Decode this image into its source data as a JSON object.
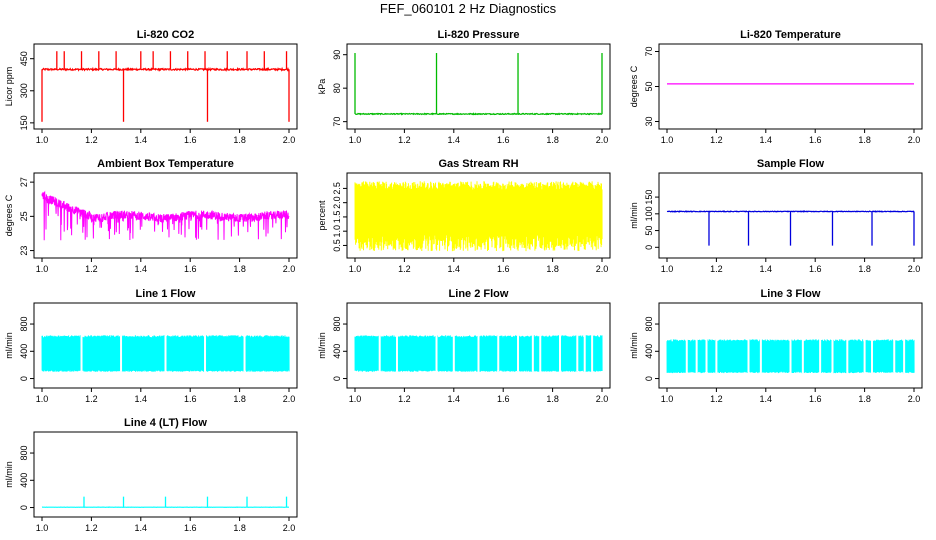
{
  "figure": {
    "title": "FEF_060101  2 Hz Diagnostics"
  },
  "chart_data": [
    {
      "type": "line",
      "title": "Li-820 CO2",
      "ylabel": "Licor ppm",
      "color": "#ff0000",
      "xlim": [
        1.0,
        2.0
      ],
      "ylim": [
        140,
        500
      ],
      "xticks": [
        "1.0",
        "1.2",
        "1.4",
        "1.6",
        "1.8",
        "2.0"
      ],
      "yticks": [
        "150",
        "300",
        "450"
      ],
      "ytick_values": [
        150,
        300,
        450
      ],
      "series": [
        {
          "base": 400,
          "noise": 8,
          "spikes_up": [
            1.06,
            1.09,
            1.16,
            1.23,
            1.3,
            1.4,
            1.45,
            1.52,
            1.59,
            1.66,
            1.75,
            1.83,
            1.9,
            1.99
          ],
          "spike_up_to": 485,
          "spikes_down": [
            1.0,
            1.33,
            1.67,
            2.0
          ],
          "spike_down_to": 155
        }
      ]
    },
    {
      "type": "line",
      "title": "Li-820 Pressure",
      "ylabel": "kPa",
      "color": "#00bb00",
      "xlim": [
        1.0,
        2.0
      ],
      "ylim": [
        69,
        92
      ],
      "xticks": [
        "1.0",
        "1.2",
        "1.4",
        "1.6",
        "1.8",
        "2.0"
      ],
      "yticks": [
        "70",
        "80",
        "90"
      ],
      "ytick_values": [
        70,
        80,
        90
      ],
      "series": [
        {
          "base": 72.3,
          "noise": 0.3,
          "spikes_up": [
            1.0,
            1.33,
            1.66,
            2.0
          ],
          "spike_up_to": 90.5
        }
      ]
    },
    {
      "type": "line",
      "title": "Li-820 Temperature",
      "ylabel": "degrees C",
      "color": "#ff00ff",
      "xlim": [
        1.0,
        2.0
      ],
      "ylim": [
        28,
        72
      ],
      "xticks": [
        "1.0",
        "1.2",
        "1.4",
        "1.6",
        "1.8",
        "2.0"
      ],
      "yticks": [
        "30",
        "50",
        "70"
      ],
      "ytick_values": [
        30,
        50,
        70
      ],
      "series": [
        {
          "base": 51.5,
          "noise": 0
        }
      ]
    },
    {
      "type": "line",
      "title": "Ambient Box Temperature",
      "ylabel": "degrees C",
      "color": "#ff00ff",
      "xlim": [
        1.0,
        2.0
      ],
      "ylim": [
        22.8,
        27.3
      ],
      "xticks": [
        "1.0",
        "1.2",
        "1.4",
        "1.6",
        "1.8",
        "2.0"
      ],
      "yticks": [
        "23",
        "25",
        "27"
      ],
      "ytick_values": [
        23,
        25,
        27
      ],
      "series": [
        {
          "base_start": 26.3,
          "base_end": 25.0,
          "decay_until": 1.2,
          "noise": 0.5,
          "dips_to": 23.6
        }
      ]
    },
    {
      "type": "line",
      "title": "Gas Stream RH",
      "ylabel": "percent",
      "color": "#ffff00",
      "xlim": [
        1.0,
        2.0
      ],
      "ylim": [
        0.2,
        2.9
      ],
      "xticks": [
        "1.0",
        "1.2",
        "1.4",
        "1.6",
        "1.8",
        "2.0"
      ],
      "yticks": [
        "0.5",
        "1.0",
        "1.5",
        "2.0",
        "2.5"
      ],
      "ytick_values": [
        0.5,
        1.0,
        1.5,
        2.0,
        2.5
      ],
      "series": [
        {
          "high": 2.6,
          "low": 0.3,
          "noise": 0.3
        }
      ]
    },
    {
      "type": "line",
      "title": "Sample Flow",
      "ylabel": "ml/min",
      "color": "#0000dd",
      "xlim": [
        1.0,
        2.0
      ],
      "ylim": [
        -20,
        210
      ],
      "xticks": [
        "1.0",
        "1.2",
        "1.4",
        "1.6",
        "1.8",
        "2.0"
      ],
      "yticks": [
        "0",
        "50",
        "100",
        "150"
      ],
      "ytick_values": [
        0,
        50,
        100,
        150
      ],
      "series": [
        {
          "base": 107,
          "noise": 2,
          "spikes_down": [
            1.17,
            1.33,
            1.5,
            1.67,
            1.83,
            2.0
          ],
          "spike_down_to": 5
        }
      ]
    },
    {
      "type": "line",
      "title": "Line 1 Flow",
      "ylabel": "ml/min",
      "color": "#00ffff",
      "xlim": [
        1.0,
        2.0
      ],
      "ylim": [
        -80,
        1050
      ],
      "xticks": [
        "1.0",
        "1.2",
        "1.4",
        "1.6",
        "1.8",
        "2.0"
      ],
      "yticks": [
        "0",
        "400",
        "800"
      ],
      "ytick_values": [
        0,
        400,
        800
      ],
      "series": [
        {
          "high": 620,
          "low": 100,
          "gaps": [
            1.16,
            1.32,
            1.5,
            1.66,
            1.82
          ]
        }
      ]
    },
    {
      "type": "line",
      "title": "Line 2 Flow",
      "ylabel": "ml/min",
      "color": "#00ffff",
      "xlim": [
        1.0,
        2.0
      ],
      "ylim": [
        -80,
        1050
      ],
      "xticks": [
        "1.0",
        "1.2",
        "1.4",
        "1.6",
        "1.8",
        "2.0"
      ],
      "yticks": [
        "0",
        "400",
        "800"
      ],
      "ytick_values": [
        0,
        400,
        800
      ],
      "series": [
        {
          "high": 620,
          "low": 100,
          "gaps": [
            1.1,
            1.17,
            1.33,
            1.4,
            1.5,
            1.58,
            1.66,
            1.72,
            1.75,
            1.83,
            1.9,
            1.93,
            1.96
          ]
        }
      ]
    },
    {
      "type": "line",
      "title": "Line 3 Flow",
      "ylabel": "ml/min",
      "color": "#00ffff",
      "xlim": [
        1.0,
        2.0
      ],
      "ylim": [
        -80,
        1050
      ],
      "xticks": [
        "1.0",
        "1.2",
        "1.4",
        "1.6",
        "1.8",
        "2.0"
      ],
      "yticks": [
        "0",
        "400",
        "800"
      ],
      "ytick_values": [
        0,
        400,
        800
      ],
      "series": [
        {
          "high": 560,
          "low": 80,
          "gaps": [
            1.08,
            1.12,
            1.16,
            1.2,
            1.33,
            1.38,
            1.5,
            1.55,
            1.62,
            1.67,
            1.73,
            1.8,
            1.83,
            1.92,
            1.96
          ]
        }
      ]
    },
    {
      "type": "line",
      "title": "Line 4 (LT) Flow",
      "ylabel": "ml/min",
      "color": "#00ffff",
      "xlim": [
        1.0,
        2.0
      ],
      "ylim": [
        -80,
        1050
      ],
      "xticks": [
        "1.0",
        "1.2",
        "1.4",
        "1.6",
        "1.8",
        "2.0"
      ],
      "yticks": [
        "0",
        "400",
        "800"
      ],
      "ytick_values": [
        0,
        400,
        800
      ],
      "series": [
        {
          "base": 5,
          "noise": 2,
          "spikes_up": [
            1.17,
            1.33,
            1.5,
            1.67,
            1.83,
            1.99
          ],
          "spike_up_to": 160
        }
      ]
    }
  ]
}
